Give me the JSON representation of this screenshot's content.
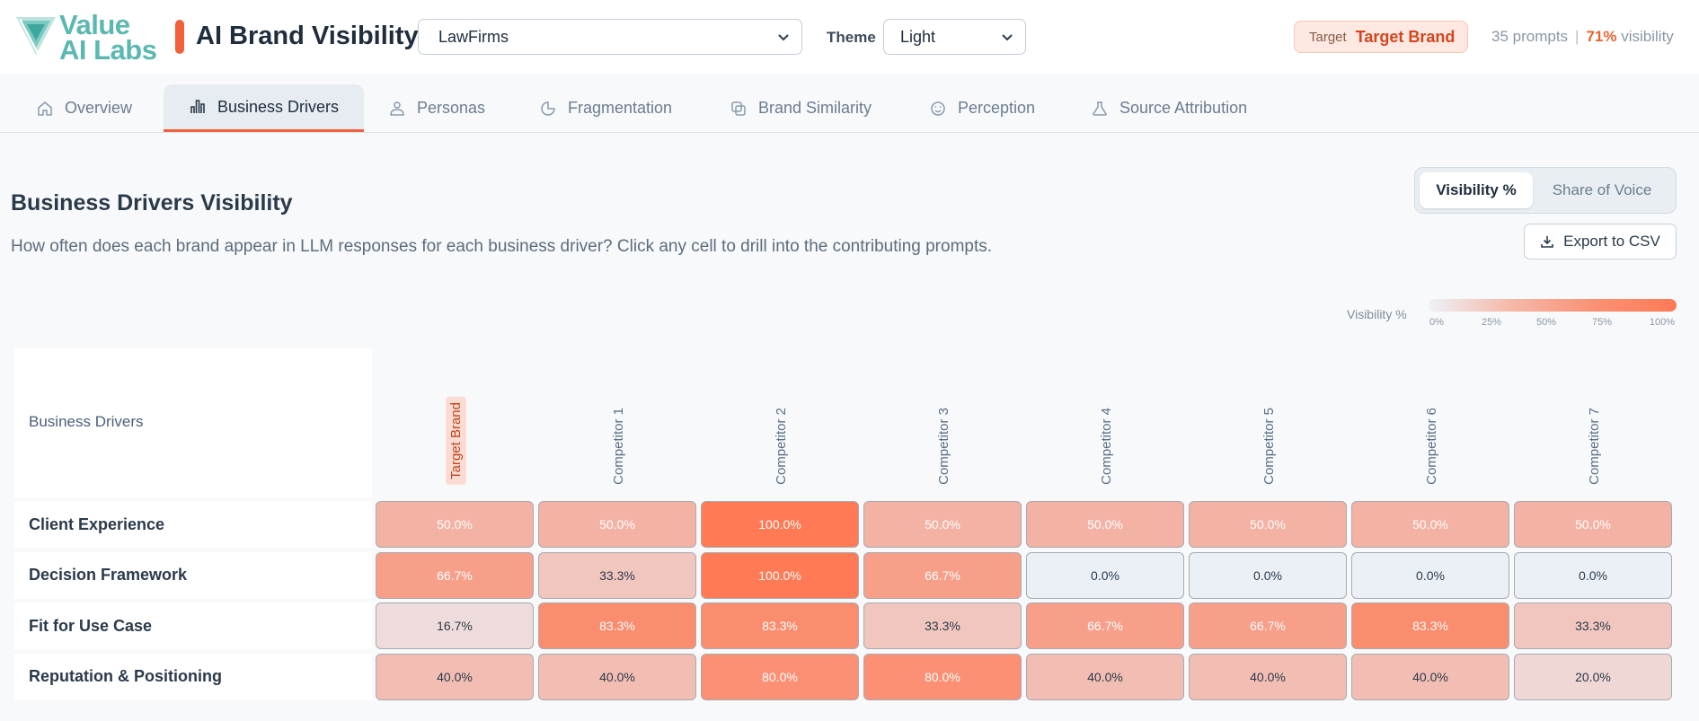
{
  "header": {
    "logo_line1": "Value",
    "logo_line2": "AI Labs",
    "title": "AI Brand Visibility",
    "client_select": "LawFirms",
    "theme_label": "Theme",
    "theme_value": "Light",
    "target_label": "Target",
    "target_value": "Target Brand",
    "prompts": "35 prompts",
    "separator": "|",
    "visibility_pct": "71%",
    "visibility_word": "visibility"
  },
  "tabs": [
    {
      "label": "Overview",
      "icon": "home-icon"
    },
    {
      "label": "Business Drivers",
      "icon": "bar-chart-icon",
      "active": true
    },
    {
      "label": "Personas",
      "icon": "persona-icon"
    },
    {
      "label": "Fragmentation",
      "icon": "pie-chart-icon"
    },
    {
      "label": "Brand Similarity",
      "icon": "copy-icon"
    },
    {
      "label": "Perception",
      "icon": "smile-icon"
    },
    {
      "label": "Source Attribution",
      "icon": "flask-icon"
    }
  ],
  "section": {
    "title": "Business Drivers Visibility",
    "description": "How often does each brand appear in LLM responses for each business driver? Click any cell to drill into the contributing prompts."
  },
  "toggle": {
    "visibility": "Visibility %",
    "share": "Share of Voice"
  },
  "export_label": "Export to CSV",
  "legend": {
    "label": "Visibility %",
    "ticks": [
      "0%",
      "25%",
      "50%",
      "75%",
      "100%"
    ],
    "colors": {
      "low": "#eef2f7",
      "mid": "#f6b8a8",
      "high": "#ff7a55"
    }
  },
  "table": {
    "row_header": "Business Drivers",
    "columns": [
      "Target Brand",
      "Competitor 1",
      "Competitor 2",
      "Competitor 3",
      "Competitor 4",
      "Competitor 5",
      "Competitor 6",
      "Competitor 7"
    ],
    "rows": [
      {
        "label": "Client Experience",
        "values": [
          50.0,
          50.0,
          100.0,
          50.0,
          50.0,
          50.0,
          50.0,
          50.0
        ]
      },
      {
        "label": "Decision Framework",
        "values": [
          66.7,
          33.3,
          100.0,
          66.7,
          0.0,
          0.0,
          0.0,
          0.0
        ]
      },
      {
        "label": "Fit for Use Case",
        "values": [
          16.7,
          83.3,
          83.3,
          33.3,
          66.7,
          66.7,
          83.3,
          33.3
        ]
      },
      {
        "label": "Reputation & Positioning",
        "values": [
          40.0,
          40.0,
          80.0,
          80.0,
          40.0,
          40.0,
          40.0,
          20.0
        ]
      }
    ]
  }
}
